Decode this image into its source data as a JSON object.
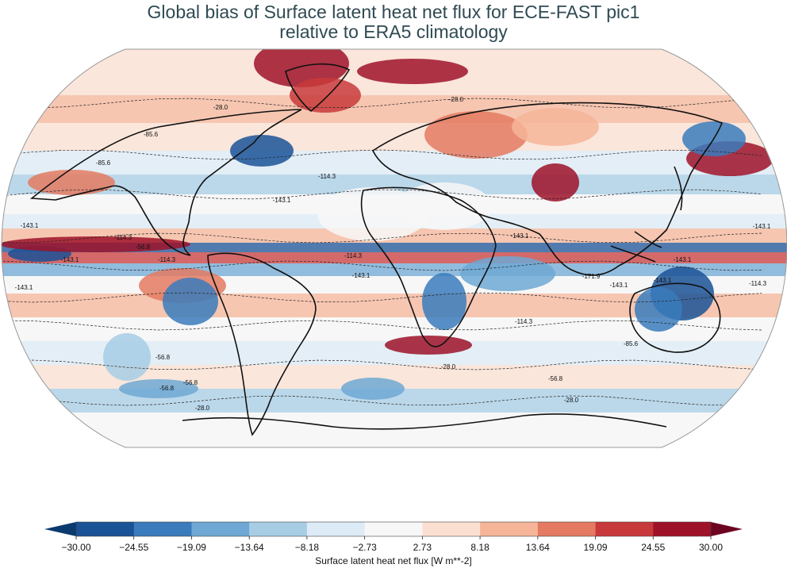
{
  "title": {
    "line1": "Global bias of Surface latent heat net flux for ECE-FAST pic1",
    "line2": "relative to ERA5 climatology"
  },
  "colorbar": {
    "label": "Surface latent heat net flux [W m**-2]",
    "ticks": [
      "−30.00",
      "−24.55",
      "−19.09",
      "−13.64",
      "−8.18",
      "−2.73",
      "2.73",
      "8.18",
      "13.64",
      "19.09",
      "24.55",
      "30.00"
    ],
    "colors": [
      "#1a5296",
      "#3a7bbc",
      "#6fa8d4",
      "#a7cde5",
      "#dcebf5",
      "#f7f7f7",
      "#fbe0d2",
      "#f6b599",
      "#e47a62",
      "#c8393b",
      "#9e1229"
    ],
    "under_color": "#0a3a6e",
    "over_color": "#6e0520"
  },
  "contour_labels": [
    "-28.0",
    "-28.0",
    "-28.0",
    "-85.6",
    "-114.3",
    "-143.1",
    "-143.1",
    "-114.3",
    "-56.8",
    "-143.1",
    "-114.3",
    "-143.1",
    "-143.1",
    "-114.3",
    "-143.1",
    "-171.9",
    "-143.1",
    "-143.1",
    "-114.3",
    "-85.6",
    "-56.8",
    "-56.8",
    "-56.8",
    "-56.8",
    "-28.0",
    "-28.0",
    "-85.6",
    "-143.1",
    "-143.1",
    "-114.3"
  ],
  "chart_data": {
    "type": "heatmap",
    "title": "Global bias of Surface latent heat net flux for ECE-FAST pic1 relative to ERA5 climatology",
    "projection": "Robinson",
    "variable": "Surface latent heat net flux",
    "units": "W m**-2",
    "levels": [
      -30.0,
      -24.55,
      -19.09,
      -13.64,
      -8.18,
      -2.73,
      2.73,
      8.18,
      13.64,
      19.09,
      24.55,
      30.0
    ],
    "colormap": "RdBu_r",
    "extend": "both",
    "climatology_contours": [
      -28.0,
      -56.8,
      -85.6,
      -114.3,
      -143.1,
      -171.9
    ]
  }
}
